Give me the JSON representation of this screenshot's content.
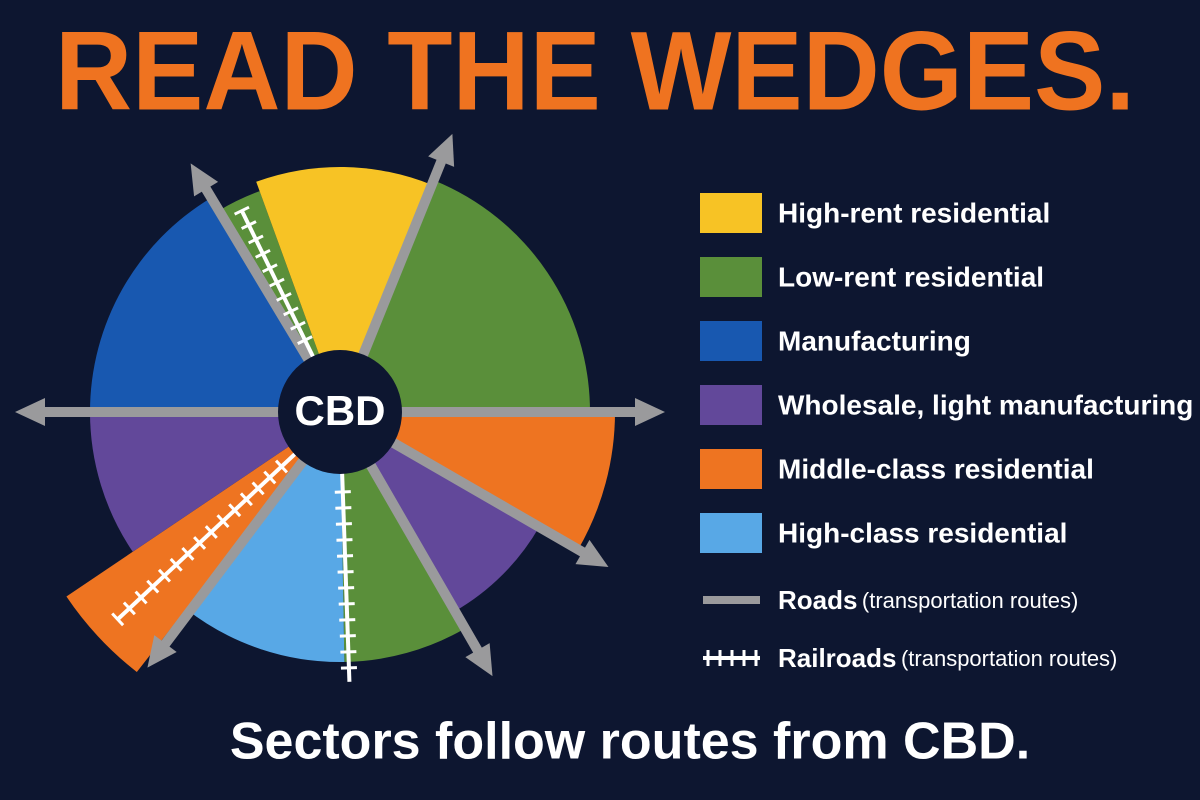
{
  "header": {
    "title": "READ THE WEDGES."
  },
  "diagram": {
    "center_label": "CBD"
  },
  "legend": {
    "items": [
      {
        "label": "High-rent residential",
        "color": "#f7c325"
      },
      {
        "label": "Low-rent residential",
        "color": "#5a8f3a"
      },
      {
        "label": "Manufacturing",
        "color": "#1858b0"
      },
      {
        "label": "Wholesale, light manufacturing",
        "color": "#62489a"
      },
      {
        "label": "Middle-class residential",
        "color": "#ee7421"
      },
      {
        "label": "High-class residential",
        "color": "#58a8e6"
      }
    ],
    "roads": {
      "label": "Roads",
      "note": "(transportation routes)"
    },
    "railroads": {
      "label": "Railroads",
      "note": "(transportation routes)"
    }
  },
  "footer": {
    "caption": "Sectors follow routes from CBD."
  }
}
